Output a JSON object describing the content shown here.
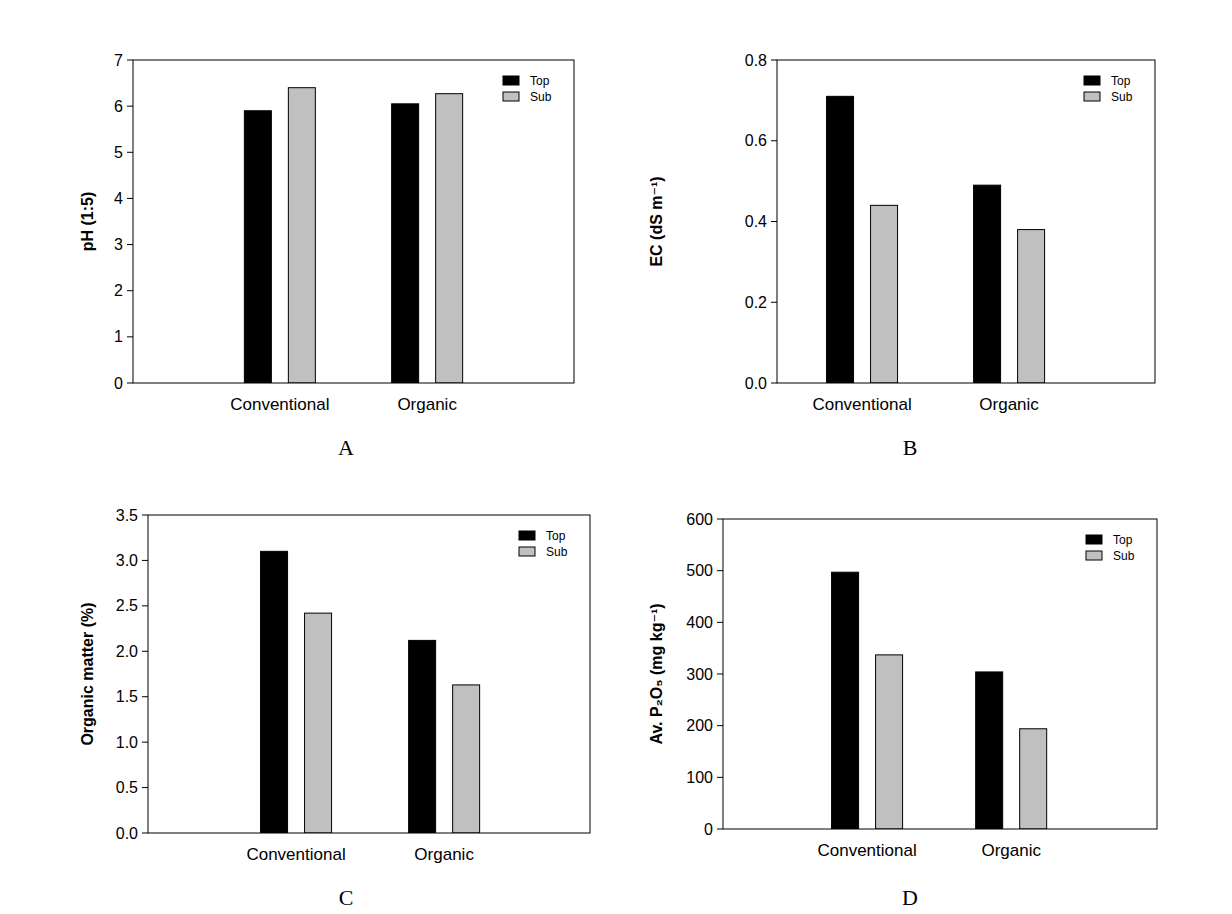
{
  "chart_data": [
    {
      "type": "bar",
      "title": "A",
      "y_label": "pH (1:5)",
      "categories": [
        "Conventional",
        "Organic"
      ],
      "series": [
        {
          "name": "Top",
          "color": "#000000",
          "values": [
            5.9,
            6.05
          ]
        },
        {
          "name": "Sub",
          "color": "#c0c0c0",
          "values": [
            6.4,
            6.27
          ]
        }
      ],
      "ylim": [
        0,
        7
      ],
      "yticks": [
        0,
        1,
        2,
        3,
        4,
        5,
        6,
        7
      ],
      "legend": "upper right",
      "grid": false
    },
    {
      "type": "bar",
      "title": "B",
      "y_label": "EC (dS m⁻¹)",
      "categories": [
        "Conventional",
        "Organic"
      ],
      "series": [
        {
          "name": "Top",
          "color": "#000000",
          "values": [
            0.71,
            0.49
          ]
        },
        {
          "name": "Sub",
          "color": "#c0c0c0",
          "values": [
            0.44,
            0.38
          ]
        }
      ],
      "ylim": [
        0,
        0.8
      ],
      "yticks": [
        {
          "value": 0,
          "label": "0.0"
        },
        0.2,
        0.4,
        0.6,
        0.8
      ],
      "legend": "upper right",
      "grid": false
    },
    {
      "type": "bar",
      "title": "C",
      "y_label": "Organic matter (%)",
      "categories": [
        "Conventional",
        "Organic"
      ],
      "series": [
        {
          "name": "Top",
          "color": "#000000",
          "values": [
            3.1,
            2.12
          ]
        },
        {
          "name": "Sub",
          "color": "#c0c0c0",
          "values": [
            2.42,
            1.63
          ]
        }
      ],
      "ylim": [
        0,
        3.5
      ],
      "yticks": [
        {
          "value": 0,
          "label": "0.0"
        },
        0.5,
        {
          "value": 1,
          "label": "1.0"
        },
        1.5,
        {
          "value": 2,
          "label": "2.0"
        },
        2.5,
        {
          "value": 3,
          "label": "3.0"
        },
        3.5
      ],
      "legend": "upper right",
      "grid": false
    },
    {
      "type": "bar",
      "title": "D",
      "y_label": "Av. P₂O₅ (mg kg⁻¹)",
      "categories": [
        "Conventional",
        "Organic"
      ],
      "series": [
        {
          "name": "Top",
          "color": "#000000",
          "values": [
            497,
            304
          ]
        },
        {
          "name": "Sub",
          "color": "#c0c0c0",
          "values": [
            337,
            194
          ]
        }
      ],
      "ylim": [
        0,
        600
      ],
      "yticks": [
        0,
        100,
        200,
        300,
        400,
        500,
        600
      ],
      "legend": "upper right",
      "grid": false
    }
  ]
}
